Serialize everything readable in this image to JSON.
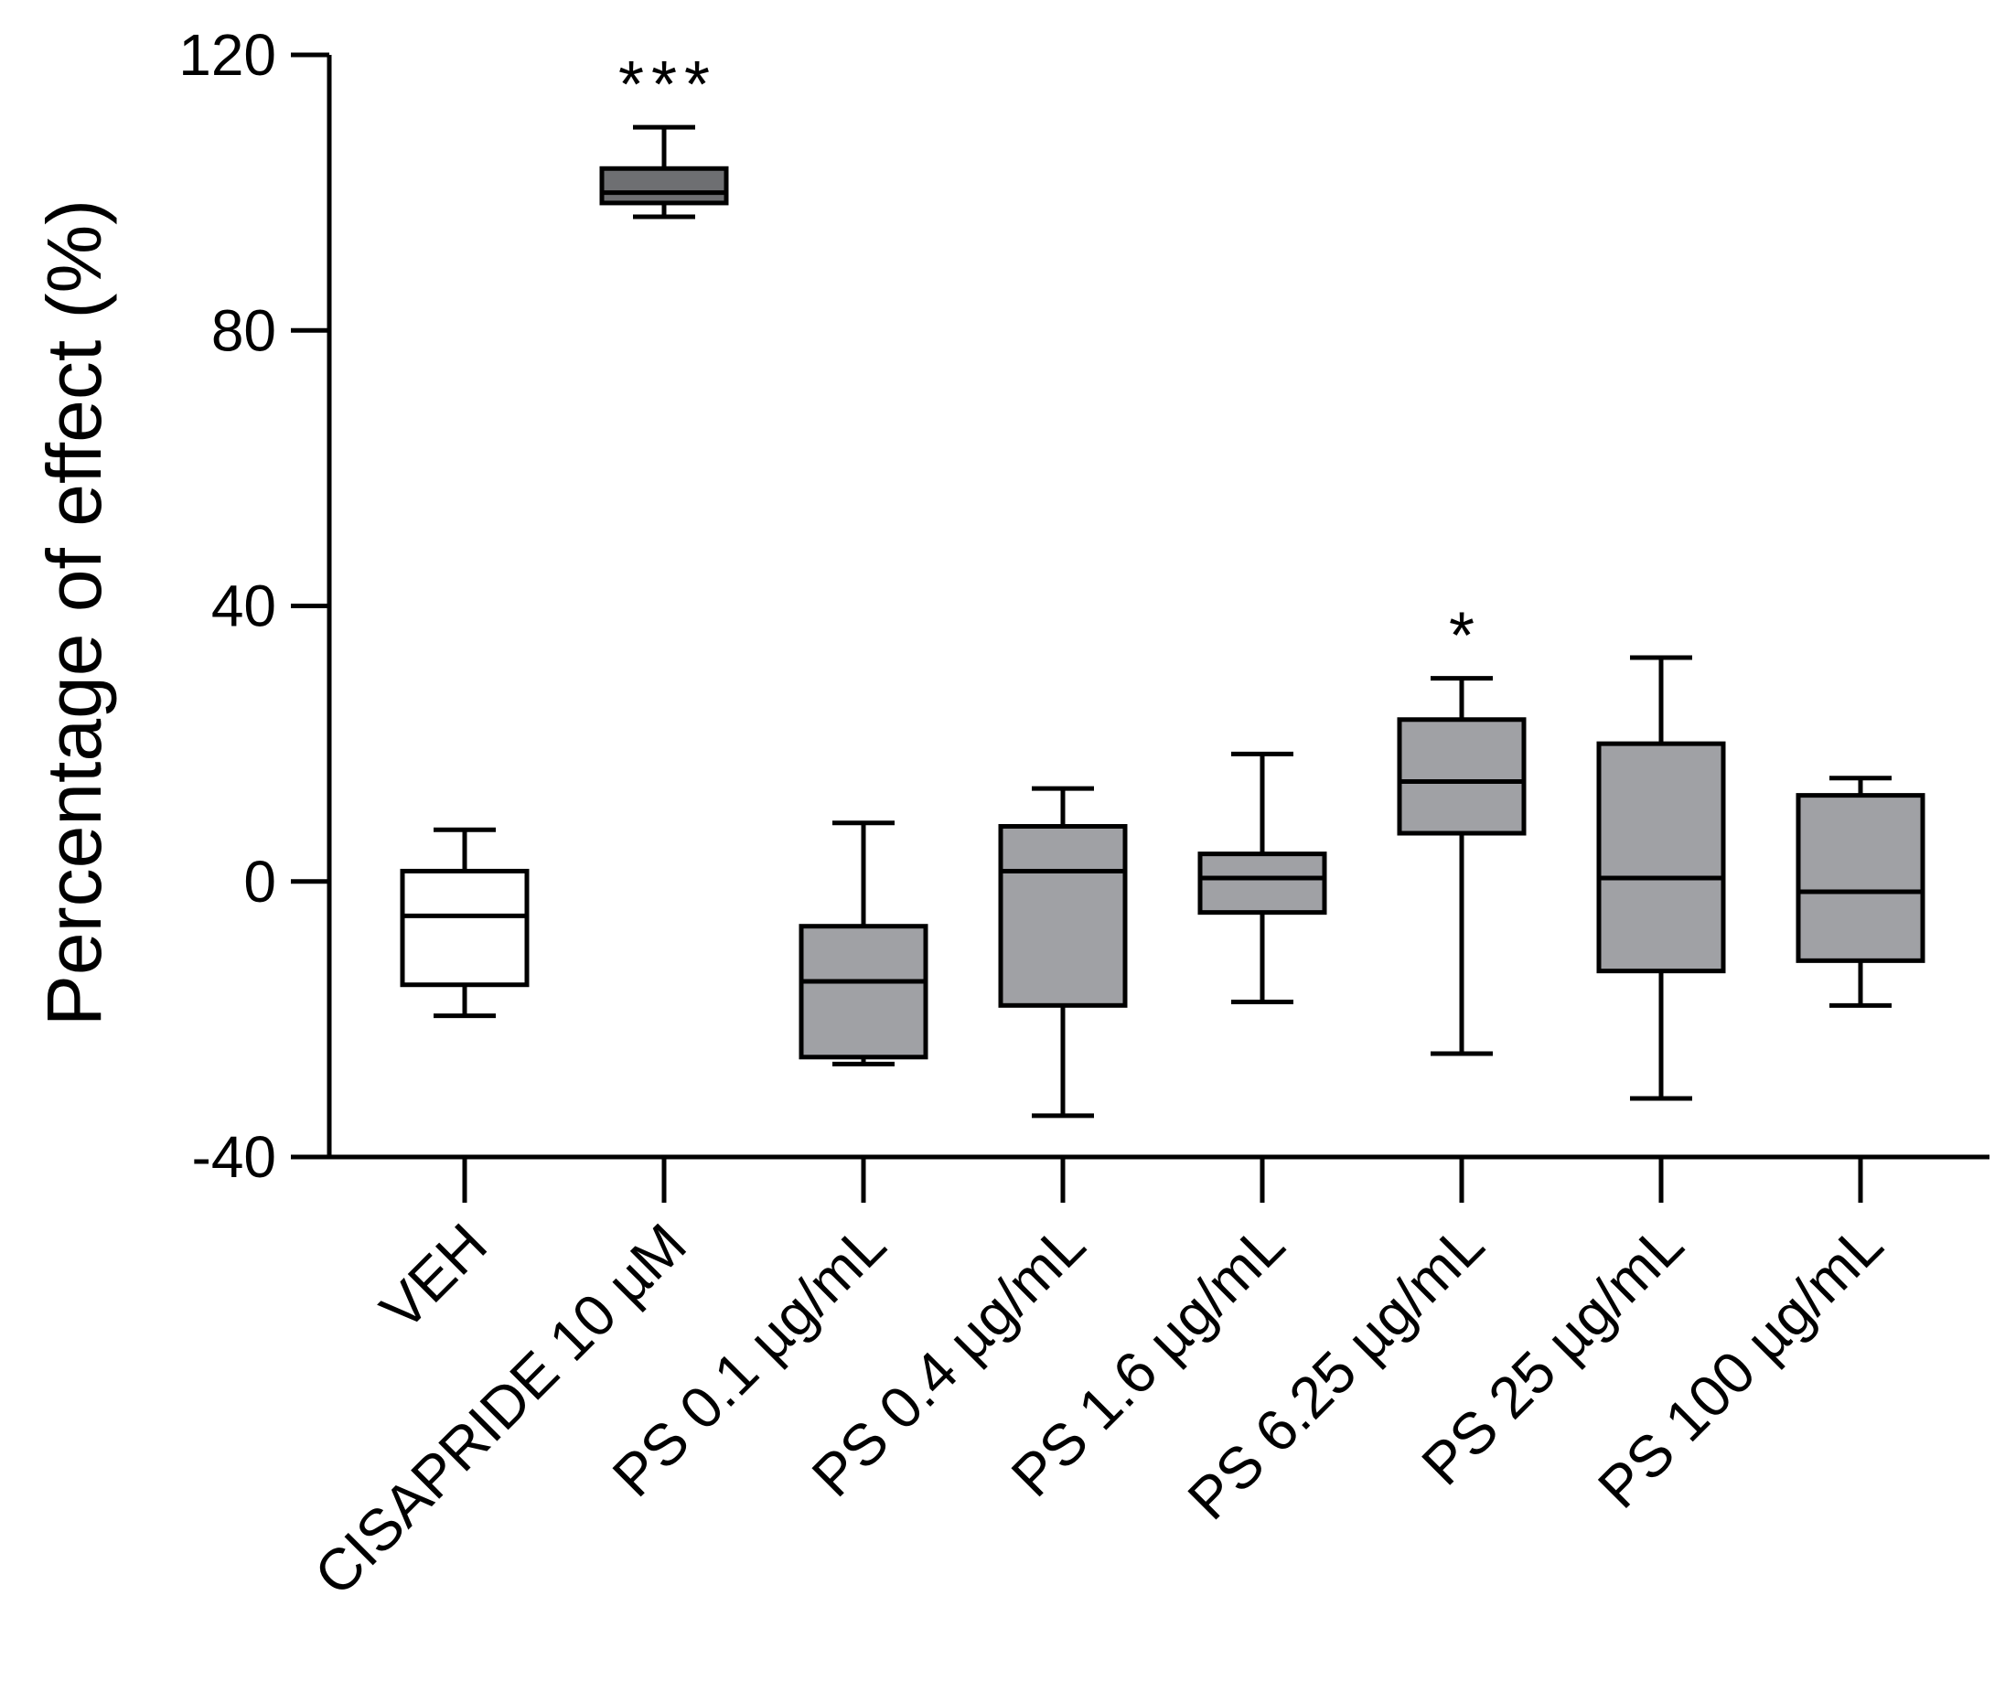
{
  "chart_data": {
    "type": "box",
    "title": "",
    "xlabel": "",
    "ylabel": "Percentage of effect (%)",
    "ylim": [
      -40,
      120
    ],
    "yticks": [
      -40,
      0,
      40,
      80,
      120
    ],
    "ytick_labels": [
      "-40",
      "0",
      "40",
      "80",
      "120"
    ],
    "categories": [
      "VEH",
      "CISAPRIDE 10 µM",
      "PS 0.1 µg/mL",
      "PS 0.4 µg/mL",
      "PS 1.6 µg/mL",
      "PS 6.25 µg/mL",
      "PS 25 µg/mL",
      "PS 100 µg/mL"
    ],
    "boxes": [
      {
        "min": -19.5,
        "q1": -15,
        "median": -5,
        "q3": 1.5,
        "max": 7.5,
        "fill": "#ffffff",
        "sig": ""
      },
      {
        "min": 96.5,
        "q1": 98.5,
        "median": 100,
        "q3": 103.5,
        "max": 109.5,
        "fill": "#6e6f72",
        "sig": "***"
      },
      {
        "min": -26.5,
        "q1": -25.5,
        "median": -14.5,
        "q3": -6.5,
        "max": 8.5,
        "fill": "#a0a1a5",
        "sig": ""
      },
      {
        "min": -34,
        "q1": -18,
        "median": 1.5,
        "q3": 8,
        "max": 13.5,
        "fill": "#a0a1a5",
        "sig": ""
      },
      {
        "min": -17.5,
        "q1": -4.5,
        "median": 0.5,
        "q3": 4,
        "max": 18.5,
        "fill": "#a0a1a5",
        "sig": ""
      },
      {
        "min": -25,
        "q1": 7,
        "median": 14.5,
        "q3": 23.5,
        "max": 29.5,
        "fill": "#a0a1a5",
        "sig": "*"
      },
      {
        "min": -31.5,
        "q1": -13,
        "median": 0.5,
        "q3": 20,
        "max": 32.5,
        "fill": "#a0a1a5",
        "sig": ""
      },
      {
        "min": -18,
        "q1": -11.5,
        "median": -1.5,
        "q3": 12.5,
        "max": 15,
        "fill": "#a0a1a5",
        "sig": ""
      }
    ]
  }
}
